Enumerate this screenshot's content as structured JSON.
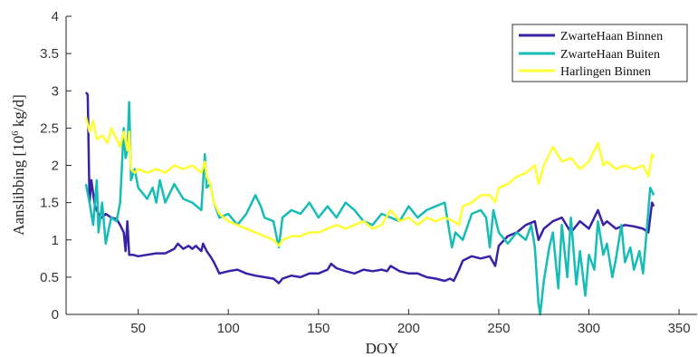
{
  "chart_data": {
    "type": "line",
    "xlabel": "DOY",
    "ylabel_main": "Aanslibbing [10",
    "ylabel_sup": "6",
    "ylabel_rest": " kg/d]",
    "xlim": [
      10,
      360
    ],
    "ylim": [
      0,
      4
    ],
    "xticks": [
      50,
      100,
      150,
      200,
      250,
      300,
      350
    ],
    "yticks": [
      0,
      0.5,
      1,
      1.5,
      2,
      2.5,
      3,
      3.5,
      4
    ],
    "xtick_labels": [
      "50",
      "100",
      "150",
      "200",
      "250",
      "300",
      "350"
    ],
    "ytick_labels": [
      "0",
      "0.5",
      "1",
      "1.5",
      "2",
      "2.5",
      "3",
      "3.5",
      "4"
    ],
    "grid": false,
    "legend_position": "top-right",
    "series": [
      {
        "name": "ZwarteHaan Binnen",
        "color": "#3a22a8",
        "x": [
          21,
          22,
          23,
          24,
          26,
          28,
          30,
          32,
          35,
          38,
          40,
          42,
          43,
          44,
          45,
          47,
          50,
          55,
          60,
          65,
          70,
          72,
          75,
          78,
          80,
          82,
          85,
          86,
          87,
          88,
          90,
          92,
          95,
          100,
          105,
          110,
          115,
          120,
          125,
          128,
          130,
          135,
          140,
          145,
          150,
          155,
          157,
          160,
          165,
          170,
          175,
          180,
          185,
          188,
          190,
          195,
          200,
          205,
          210,
          215,
          220,
          223,
          225,
          228,
          230,
          235,
          240,
          245,
          248,
          250,
          255,
          260,
          265,
          270,
          272,
          275,
          280,
          285,
          290,
          295,
          300,
          305,
          308,
          310,
          315,
          320,
          325,
          330,
          333,
          335,
          336
        ],
        "y": [
          2.98,
          2.95,
          1.5,
          1.8,
          1.45,
          1.35,
          1.3,
          1.35,
          1.3,
          1.28,
          1.2,
          1.1,
          0.85,
          1.25,
          0.8,
          0.8,
          0.78,
          0.8,
          0.82,
          0.82,
          0.88,
          0.95,
          0.88,
          0.92,
          0.88,
          0.92,
          0.85,
          0.95,
          0.9,
          0.85,
          0.78,
          0.7,
          0.55,
          0.58,
          0.6,
          0.55,
          0.52,
          0.5,
          0.48,
          0.42,
          0.48,
          0.52,
          0.5,
          0.55,
          0.55,
          0.6,
          0.68,
          0.62,
          0.58,
          0.55,
          0.6,
          0.58,
          0.6,
          0.58,
          0.65,
          0.58,
          0.55,
          0.55,
          0.5,
          0.48,
          0.45,
          0.48,
          0.45,
          0.6,
          0.72,
          0.78,
          0.75,
          0.78,
          0.65,
          0.92,
          1.05,
          1.1,
          1.2,
          1.25,
          1.0,
          1.15,
          1.25,
          1.3,
          1.1,
          1.25,
          1.15,
          1.4,
          1.2,
          1.25,
          1.15,
          1.2,
          1.18,
          1.15,
          1.1,
          1.5,
          1.45
        ]
      },
      {
        "name": "ZwarteHaan Buiten",
        "color": "#16bcb6",
        "x": [
          21,
          23,
          25,
          27,
          28,
          30,
          32,
          35,
          38,
          40,
          42,
          43,
          44,
          45,
          46,
          48,
          50,
          55,
          58,
          60,
          62,
          65,
          70,
          75,
          80,
          85,
          87,
          88,
          90,
          92,
          95,
          100,
          105,
          110,
          115,
          118,
          120,
          125,
          128,
          130,
          135,
          140,
          145,
          150,
          155,
          160,
          165,
          170,
          175,
          180,
          185,
          190,
          195,
          200,
          205,
          210,
          215,
          220,
          222,
          224,
          226,
          230,
          235,
          240,
          243,
          245,
          247,
          250,
          255,
          260,
          265,
          268,
          270,
          272,
          273,
          275,
          278,
          280,
          283,
          285,
          288,
          290,
          293,
          295,
          298,
          300,
          303,
          305,
          308,
          310,
          313,
          315,
          318,
          320,
          323,
          325,
          328,
          330,
          332,
          334,
          336
        ],
        "y": [
          1.75,
          1.5,
          1.2,
          1.8,
          1.1,
          1.5,
          0.95,
          1.3,
          1.25,
          1.5,
          2.5,
          2.1,
          2.2,
          2.85,
          1.8,
          1.95,
          1.7,
          1.55,
          1.7,
          1.5,
          1.8,
          1.5,
          1.75,
          1.55,
          1.5,
          1.4,
          2.15,
          1.7,
          1.75,
          1.5,
          1.3,
          1.35,
          1.2,
          1.35,
          1.6,
          1.45,
          1.3,
          1.25,
          0.9,
          1.3,
          1.4,
          1.35,
          1.5,
          1.3,
          1.45,
          1.3,
          1.5,
          1.4,
          1.25,
          1.2,
          1.35,
          1.3,
          1.25,
          1.45,
          1.3,
          1.4,
          1.45,
          1.5,
          1.2,
          0.9,
          1.1,
          1.0,
          1.35,
          1.4,
          1.3,
          0.9,
          1.4,
          1.1,
          0.95,
          1.1,
          1.0,
          1.2,
          0.9,
          0.15,
          0.0,
          0.45,
          0.9,
          1.1,
          0.35,
          1.2,
          0.5,
          1.3,
          0.4,
          0.85,
          0.25,
          0.8,
          0.6,
          1.25,
          0.8,
          0.95,
          0.5,
          0.75,
          1.2,
          0.7,
          0.9,
          0.6,
          0.85,
          0.55,
          1.1,
          1.7,
          1.6
        ]
      },
      {
        "name": "Harlingen Binnen",
        "color": "#ffff33",
        "x": [
          21,
          23,
          25,
          27,
          30,
          33,
          35,
          38,
          40,
          42,
          44,
          45,
          46,
          48,
          50,
          55,
          60,
          65,
          70,
          75,
          80,
          85,
          87,
          88,
          90,
          92,
          95,
          100,
          105,
          110,
          115,
          120,
          125,
          128,
          130,
          135,
          140,
          145,
          150,
          155,
          160,
          165,
          170,
          175,
          180,
          185,
          190,
          195,
          200,
          205,
          210,
          215,
          220,
          225,
          228,
          230,
          235,
          240,
          245,
          248,
          250,
          255,
          260,
          265,
          270,
          272,
          275,
          280,
          285,
          290,
          295,
          300,
          305,
          308,
          310,
          315,
          320,
          325,
          330,
          333,
          335,
          336
        ],
        "y": [
          2.65,
          2.45,
          2.6,
          2.35,
          2.4,
          2.3,
          2.5,
          2.35,
          2.25,
          2.45,
          2.2,
          2.45,
          1.95,
          1.9,
          1.95,
          1.9,
          1.95,
          1.9,
          2.0,
          1.95,
          2.0,
          1.9,
          2.05,
          1.85,
          1.75,
          1.5,
          1.35,
          1.25,
          1.2,
          1.15,
          1.1,
          1.05,
          1.0,
          0.92,
          1.0,
          1.05,
          1.05,
          1.1,
          1.1,
          1.15,
          1.2,
          1.15,
          1.2,
          1.25,
          1.15,
          1.2,
          1.4,
          1.25,
          1.3,
          1.2,
          1.3,
          1.25,
          1.3,
          1.25,
          1.2,
          1.45,
          1.5,
          1.6,
          1.6,
          1.5,
          1.7,
          1.75,
          1.85,
          1.9,
          2.0,
          1.75,
          2.0,
          2.25,
          2.05,
          2.1,
          1.95,
          2.05,
          2.3,
          2.0,
          2.05,
          1.95,
          2.0,
          1.95,
          2.0,
          1.85,
          2.15,
          2.1
        ]
      }
    ]
  }
}
